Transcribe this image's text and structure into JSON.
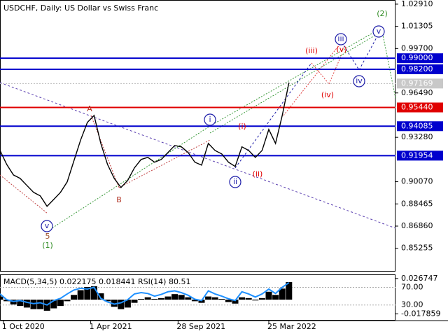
{
  "chart_data": [
    {
      "type": "line",
      "title": "USDCHF, Daily:  US Dollar vs Swiss Franc",
      "color": "#000000",
      "values": [
        0.9233,
        0.9132,
        0.9056,
        0.9031,
        0.898,
        0.893,
        0.8904,
        0.8829,
        0.8879,
        0.893,
        0.9006,
        0.9158,
        0.9309,
        0.9436,
        0.9486,
        0.9284,
        0.9132,
        0.9031,
        0.8965,
        0.9016,
        0.9107,
        0.9168,
        0.9183,
        0.9148,
        0.9168,
        0.9218,
        0.9269,
        0.9259,
        0.9218,
        0.9148,
        0.9127,
        0.9284,
        0.9233,
        0.9208,
        0.9148,
        0.9117,
        0.9259,
        0.9233,
        0.9183,
        0.9233,
        0.9385,
        0.9284,
        0.9486,
        0.9724
      ],
      "ylim": [
        0.8357,
        1.0321
      ],
      "yticks": [
        {
          "value": 1.0291,
          "label": "1.02910"
        },
        {
          "value": 1.01305,
          "label": "1.01305"
        },
        {
          "value": 0.997,
          "label": "0.99700"
        },
        {
          "value": 0.9649,
          "label": "0.96490"
        },
        {
          "value": 0.9328,
          "label": "0.93280"
        },
        {
          "value": 0.9007,
          "label": "0.90070"
        },
        {
          "value": 0.88465,
          "label": "0.88465"
        },
        {
          "value": 0.8686,
          "label": "0.86860"
        },
        {
          "value": 0.85255,
          "label": "0.85255"
        }
      ],
      "xticks": [
        {
          "value": 0.5,
          "label": "1 Oct 2020"
        },
        {
          "value": 13.5,
          "label": "1 Apr 2021"
        },
        {
          "value": 26.5,
          "label": "28 Sep 2021"
        },
        {
          "value": 40,
          "label": "25 Mar 2022"
        }
      ],
      "levels": [
        {
          "value": 0.99,
          "label": "0.99000",
          "color": "#0000cd"
        },
        {
          "value": 0.982,
          "label": "0.98200",
          "color": "#0000cd"
        },
        {
          "value": 0.9544,
          "label": "0.95440",
          "color": "#e00000"
        },
        {
          "value": 0.94085,
          "label": "0.94085",
          "color": "#0000cd"
        },
        {
          "value": 0.91954,
          "label": "0.91954",
          "color": "#0000cd"
        }
      ],
      "last_price": {
        "value": 0.97169,
        "label": "0.97169"
      },
      "annotations": [
        {
          "text": "v",
          "color": "#1c1ca8"
        },
        {
          "text": "5",
          "color": "#a0522d"
        },
        {
          "text": "(1)",
          "color": "#2e8b22"
        },
        {
          "text": "A",
          "color": "#b03020"
        },
        {
          "text": "B",
          "color": "#b03020"
        },
        {
          "text": "i",
          "color": "#1c1ca8"
        },
        {
          "text": "ii",
          "color": "#1c1ca8"
        },
        {
          "text": "(i)",
          "color": "#e00000"
        },
        {
          "text": "(ii)",
          "color": "#e00000"
        },
        {
          "text": "(iii)",
          "color": "#e00000"
        },
        {
          "text": "(iv)",
          "color": "#e00000"
        },
        {
          "text": "(v)",
          "color": "#e00000"
        },
        {
          "text": "iii",
          "color": "#1c1ca8"
        },
        {
          "text": "iv",
          "color": "#1c1ca8"
        },
        {
          "text": "v",
          "color": "#1c1ca8"
        },
        {
          "text": "(2)",
          "color": "#2e8b22"
        }
      ]
    },
    {
      "type": "macd",
      "title": "MACD(5,34,5) 0.022175 0.018441 RSI(14) 80.51",
      "ylim": [
        -0.025581,
        0.031037
      ],
      "yticks": [
        0.026747,
        -0.017859
      ],
      "y2lim": [
        -3.8,
        97.7
      ],
      "y2ticks": [
        {
          "value": 70,
          "label": "70.00"
        },
        {
          "value": 30,
          "label": "30.00"
        }
      ],
      "series": [
        {
          "name": "MACD",
          "color": "#000000",
          "values": [
            0.004,
            -0.002,
            -0.006,
            -0.008,
            -0.01,
            -0.012,
            -0.012,
            -0.014,
            -0.011,
            -0.008,
            -0.002,
            0.006,
            0.012,
            0.016,
            0.017,
            0.008,
            -0.002,
            -0.009,
            -0.012,
            -0.01,
            -0.004,
            0.001,
            0.003,
            0.001,
            0.002,
            0.004,
            0.007,
            0.006,
            0.003,
            -0.002,
            -0.004,
            0.004,
            0.003,
            0.001,
            -0.003,
            -0.005,
            0.003,
            0.002,
            -0.001,
            0.002,
            0.01,
            0.006,
            0.014,
            0.022175
          ]
        },
        {
          "name": "RSI(14)",
          "color": "#1e90ff",
          "axis": "y2",
          "values": [
            55,
            42,
            38,
            40,
            36,
            33,
            35,
            30,
            40,
            45,
            55,
            64,
            68,
            66,
            70,
            45,
            37,
            32,
            35,
            42,
            55,
            58,
            56,
            50,
            54,
            60,
            62,
            58,
            52,
            43,
            40,
            62,
            55,
            50,
            44,
            40,
            60,
            55,
            48,
            55,
            66,
            56,
            70,
            80.51
          ]
        }
      ]
    }
  ]
}
